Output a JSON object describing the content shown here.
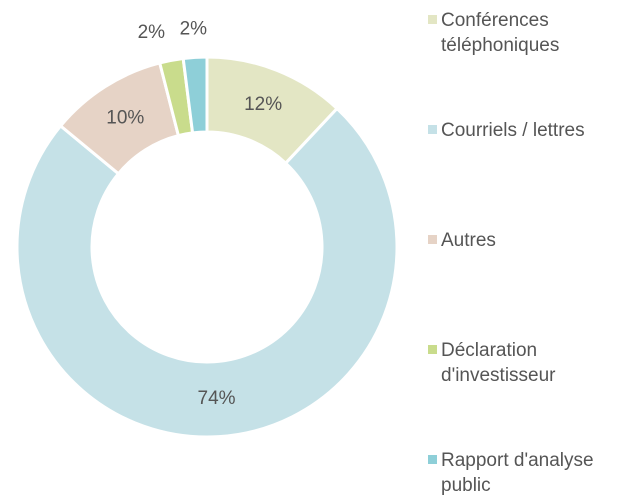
{
  "chart_data": {
    "type": "donut",
    "categories": [
      "Conférences téléphoniques",
      "Courriels / lettres",
      "Autres",
      "Déclaration d'investisseur",
      "Rapport d'analyse public"
    ],
    "values": [
      12,
      74,
      10,
      2,
      2
    ],
    "value_labels": [
      "12%",
      "74%",
      "10%",
      "2%",
      "2%"
    ],
    "colors": [
      "#e3e6c4",
      "#c5e1e7",
      "#e6d3c6",
      "#c9dc8c",
      "#8ecfd8"
    ],
    "legend": "right"
  }
}
